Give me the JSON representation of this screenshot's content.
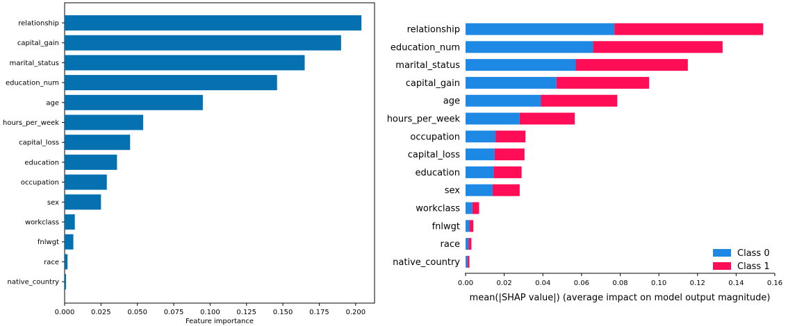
{
  "chart_data": [
    {
      "type": "bar",
      "orientation": "horizontal",
      "title": "",
      "xlabel": "Feature importance",
      "ylabel": "",
      "xlim": [
        0,
        0.213
      ],
      "xticks": [
        "0.000",
        "0.025",
        "0.050",
        "0.075",
        "0.100",
        "0.125",
        "0.150",
        "0.175",
        "0.200"
      ],
      "grid": false,
      "color": "#0571b0",
      "categories": [
        "relationship",
        "capital_gain",
        "marital_status",
        "education_num",
        "age",
        "hours_per_week",
        "capital_loss",
        "education",
        "occupation",
        "sex",
        "workclass",
        "fnlwgt",
        "race",
        "native_country"
      ],
      "values": [
        0.204,
        0.19,
        0.165,
        0.146,
        0.095,
        0.054,
        0.045,
        0.036,
        0.029,
        0.025,
        0.007,
        0.006,
        0.002,
        0.001
      ]
    },
    {
      "type": "bar",
      "orientation": "horizontal",
      "stacked": true,
      "title": "",
      "xlabel": "mean(|SHAP value|) (average impact on model output magnitude)",
      "ylabel": "",
      "xlim": [
        0,
        0.16
      ],
      "xticks": [
        "0.00",
        "0.02",
        "0.04",
        "0.06",
        "0.08",
        "0.10",
        "0.12",
        "0.14",
        "0.16"
      ],
      "grid": false,
      "legend_position": "bottom-right",
      "categories": [
        "relationship",
        "education_num",
        "marital_status",
        "capital_gain",
        "age",
        "hours_per_week",
        "occupation",
        "capital_loss",
        "education",
        "sex",
        "workclass",
        "fnlwgt",
        "race",
        "native_country"
      ],
      "series": [
        {
          "name": "Class 0",
          "color": "#1e88e5",
          "values": [
            0.077,
            0.066,
            0.057,
            0.047,
            0.039,
            0.028,
            0.0155,
            0.015,
            0.0145,
            0.014,
            0.0035,
            0.002,
            0.0015,
            0.001
          ]
        },
        {
          "name": "Class 1",
          "color": "#ff0d57",
          "values": [
            0.077,
            0.067,
            0.058,
            0.048,
            0.0395,
            0.0285,
            0.0155,
            0.0155,
            0.0145,
            0.014,
            0.0035,
            0.002,
            0.0015,
            0.001
          ]
        }
      ]
    }
  ]
}
